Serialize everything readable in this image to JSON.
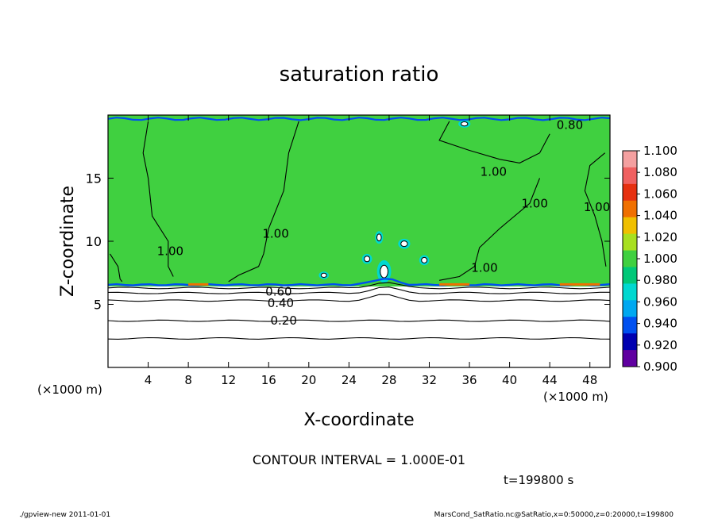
{
  "chart_data": {
    "type": "heatmap",
    "title": "saturation ratio",
    "xlabel": "X-coordinate",
    "ylabel": "Z-coordinate",
    "x_unit": "(×1000 m)",
    "y_unit": "(×1000 m)",
    "xlim": [
      0,
      50
    ],
    "ylim": [
      0,
      20
    ],
    "x_ticks": [
      4,
      8,
      12,
      16,
      20,
      24,
      28,
      32,
      36,
      40,
      44,
      48
    ],
    "y_ticks": [
      5,
      10,
      15
    ],
    "colorbar": {
      "levels": [
        "1.100",
        "1.080",
        "1.060",
        "1.040",
        "1.020",
        "1.000",
        "0.980",
        "0.960",
        "0.940",
        "0.920",
        "0.900"
      ],
      "colors": [
        "#f4a0a0",
        "#f06060",
        "#e63010",
        "#f07000",
        "#f0c000",
        "#a8e020",
        "#40d040",
        "#00c878",
        "#00d8d0",
        "#00a8f0",
        "#0050f0",
        "#0000b0",
        "#6000a0"
      ]
    },
    "background_value": 1.0,
    "contour_labels": [
      {
        "text": "1.00",
        "x": 6.2,
        "y": 9.2
      },
      {
        "text": "1.00",
        "x": 16.7,
        "y": 10.6
      },
      {
        "text": "1.00",
        "x": 38.4,
        "y": 15.5
      },
      {
        "text": "1.00",
        "x": 42.5,
        "y": 13.0
      },
      {
        "text": "1.00",
        "x": 48.7,
        "y": 12.7
      },
      {
        "text": "1.00",
        "x": 37.5,
        "y": 7.9
      },
      {
        "text": "0.80",
        "x": 46.0,
        "y": 19.2
      },
      {
        "text": "0.60",
        "x": 17.0,
        "y": 6.0
      },
      {
        "text": "0.40",
        "x": 17.2,
        "y": 5.1
      },
      {
        "text": "0.20",
        "x": 17.5,
        "y": 3.7
      }
    ],
    "stable_layer_contours": [
      {
        "value": 0.8,
        "z": 6.3
      },
      {
        "value": 0.6,
        "z": 5.9
      },
      {
        "value": 0.4,
        "z": 5.3
      },
      {
        "value": 0.2,
        "z": 3.7
      },
      {
        "value": 0.1,
        "z": 2.3
      }
    ],
    "annotation": "CONTOUR INTERVAL = 1.000E-01",
    "time_label": "t=199800 s"
  },
  "footer": {
    "left": "./gpview-new  2011-01-01",
    "right": "MarsCond_SatRatio.nc@SatRatio,x=0:50000,z=0:20000,t=199800"
  }
}
